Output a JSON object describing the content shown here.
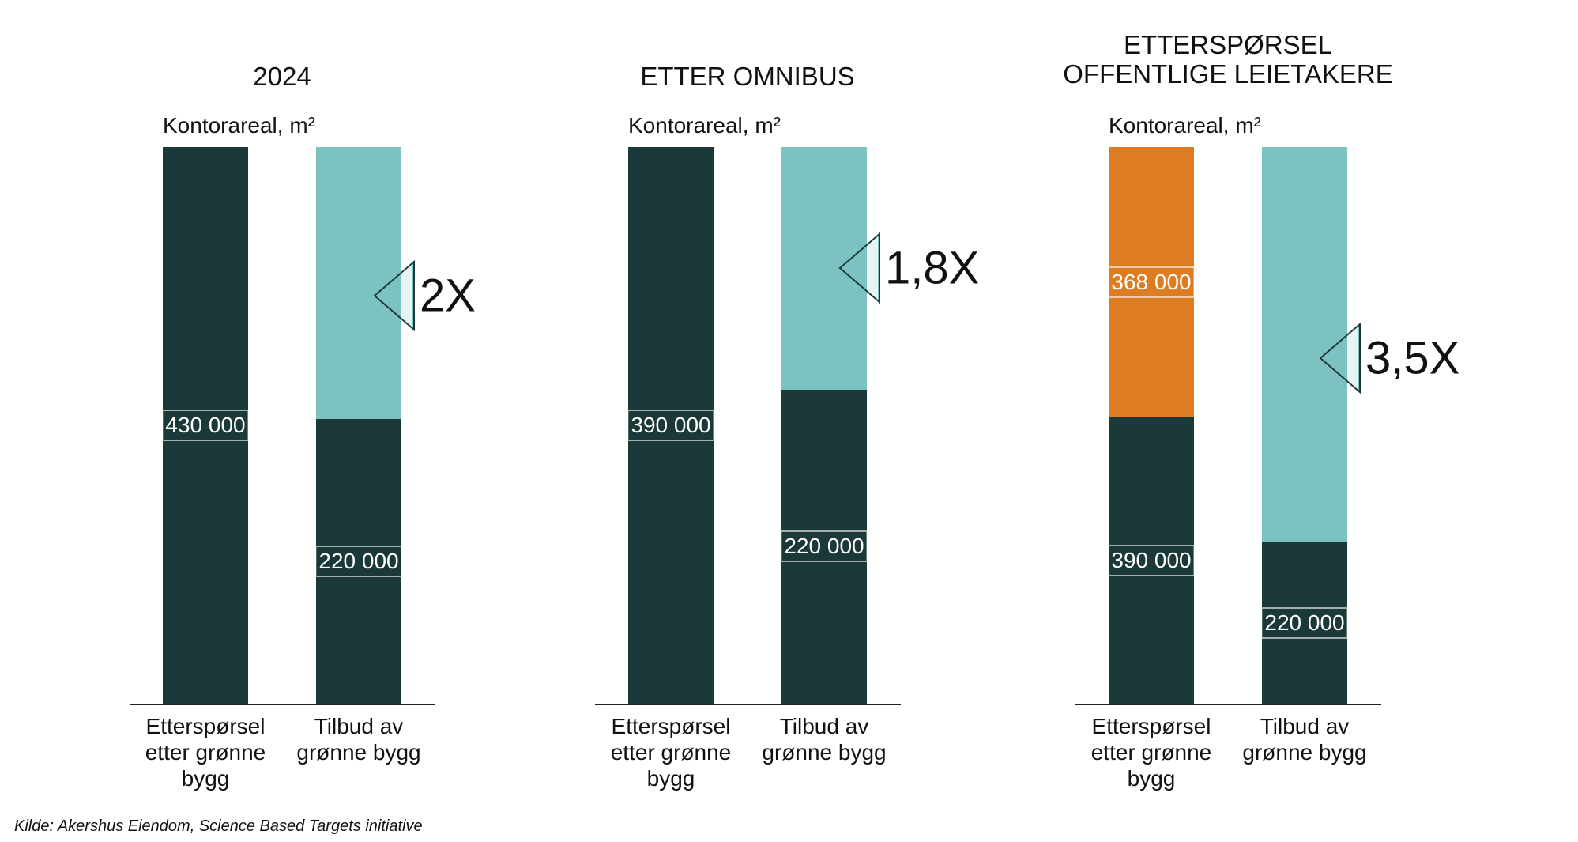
{
  "chart_data": [
    {
      "type": "bar",
      "stacked": true,
      "title": "2024",
      "y_label": "Kontorareal, m²",
      "categories": [
        "Etterspørsel etter grønne bygg",
        "Tilbud av grønne bygg"
      ],
      "series": [
        {
          "color": "#1c3939",
          "values": [
            430000,
            220000
          ],
          "value_labels": [
            "430 000",
            "220 000"
          ]
        },
        {
          "color": "#7bc2c0",
          "values": [
            null,
            210000
          ]
        }
      ],
      "annotation": "2X"
    },
    {
      "type": "bar",
      "stacked": true,
      "title": "ETTER OMNIBUS",
      "y_label": "Kontorareal, m²",
      "categories": [
        "Etterspørsel etter grønne bygg",
        "Tilbud av grønne bygg"
      ],
      "series": [
        {
          "color": "#1c3939",
          "values": [
            390000,
            220000
          ],
          "value_labels": [
            "390 000",
            "220 000"
          ]
        },
        {
          "color": "#7bc2c0",
          "values": [
            null,
            170000
          ]
        }
      ],
      "annotation": "1,8X"
    },
    {
      "type": "bar",
      "stacked": true,
      "title": "ETTERSPØRSEL\nOFFENTLIGE LEIETAKERE",
      "y_label": "Kontorareal, m²",
      "categories": [
        "Etterspørsel etter grønne bygg",
        "Tilbud av grønne bygg"
      ],
      "series": [
        {
          "color": "#1c3939",
          "values": [
            390000,
            220000
          ],
          "value_labels": [
            "390 000",
            "220 000"
          ]
        },
        {
          "color": "#de7c21",
          "values": [
            368000,
            null
          ],
          "value_labels": [
            "368 000",
            null
          ]
        },
        {
          "color": "#7bc2c0",
          "values": [
            null,
            538000
          ]
        }
      ],
      "annotation": "3,5X"
    }
  ],
  "source": "Kilde: Akershus Eiendom, Science Based Targets initiative"
}
